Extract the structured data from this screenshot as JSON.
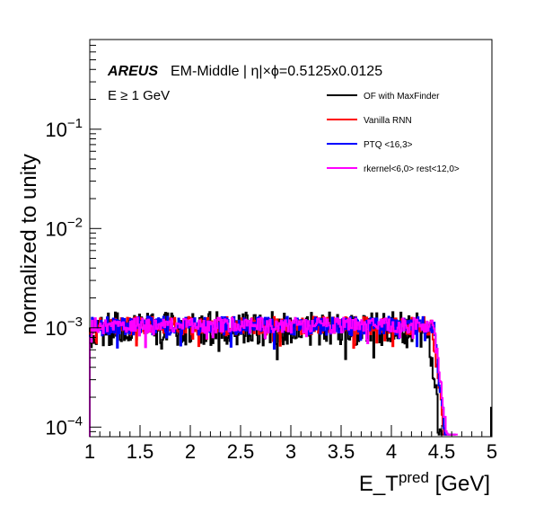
{
  "chart_data": {
    "type": "line",
    "title": "",
    "ylabel": "normalized to unity",
    "xlabel": "E_T",
    "xlabel_sup": "pred",
    "xlabel_unit": " [GeV]",
    "xlim": [
      1.0,
      5.0
    ],
    "ylim": [
      8e-05,
      0.8
    ],
    "yscale": "log",
    "x_ticks": [
      "1",
      "1.5",
      "2",
      "2.5",
      "3",
      "3.5",
      "4",
      "4.5",
      "5"
    ],
    "y_ticks": [
      {
        "value": 0.0001,
        "base": "10",
        "exp": "−4"
      },
      {
        "value": 0.001,
        "base": "10",
        "exp": "−3"
      },
      {
        "value": 0.01,
        "base": "10",
        "exp": "−2"
      },
      {
        "value": 0.1,
        "base": "10",
        "exp": "−1"
      }
    ],
    "annotations": {
      "brand": "AREUS",
      "region": "EM-Middle | η|×ϕ=0.5125x0.0125",
      "cut": "E ≥ 1 GeV"
    },
    "legend_position": "top-right",
    "series": [
      {
        "name": "OF with MaxFinder",
        "color": "#000000",
        "plateau": 0.00098,
        "spread": 0.48,
        "falloff_start": 4.36,
        "falloff_end": 4.58
      },
      {
        "name": "Vanilla RNN",
        "color": "#ff0000",
        "plateau": 0.00105,
        "spread": 0.26,
        "falloff_start": 4.4,
        "falloff_end": 4.62
      },
      {
        "name": "PTQ <16,3>",
        "color": "#0000ff",
        "plateau": 0.00105,
        "spread": 0.26,
        "falloff_start": 4.42,
        "falloff_end": 4.62
      },
      {
        "name": "rkernel<6,0> rest<12,0>",
        "color": "#ff00ff",
        "plateau": 0.00106,
        "spread": 0.22,
        "falloff_start": 4.42,
        "falloff_end": 4.64
      }
    ]
  }
}
